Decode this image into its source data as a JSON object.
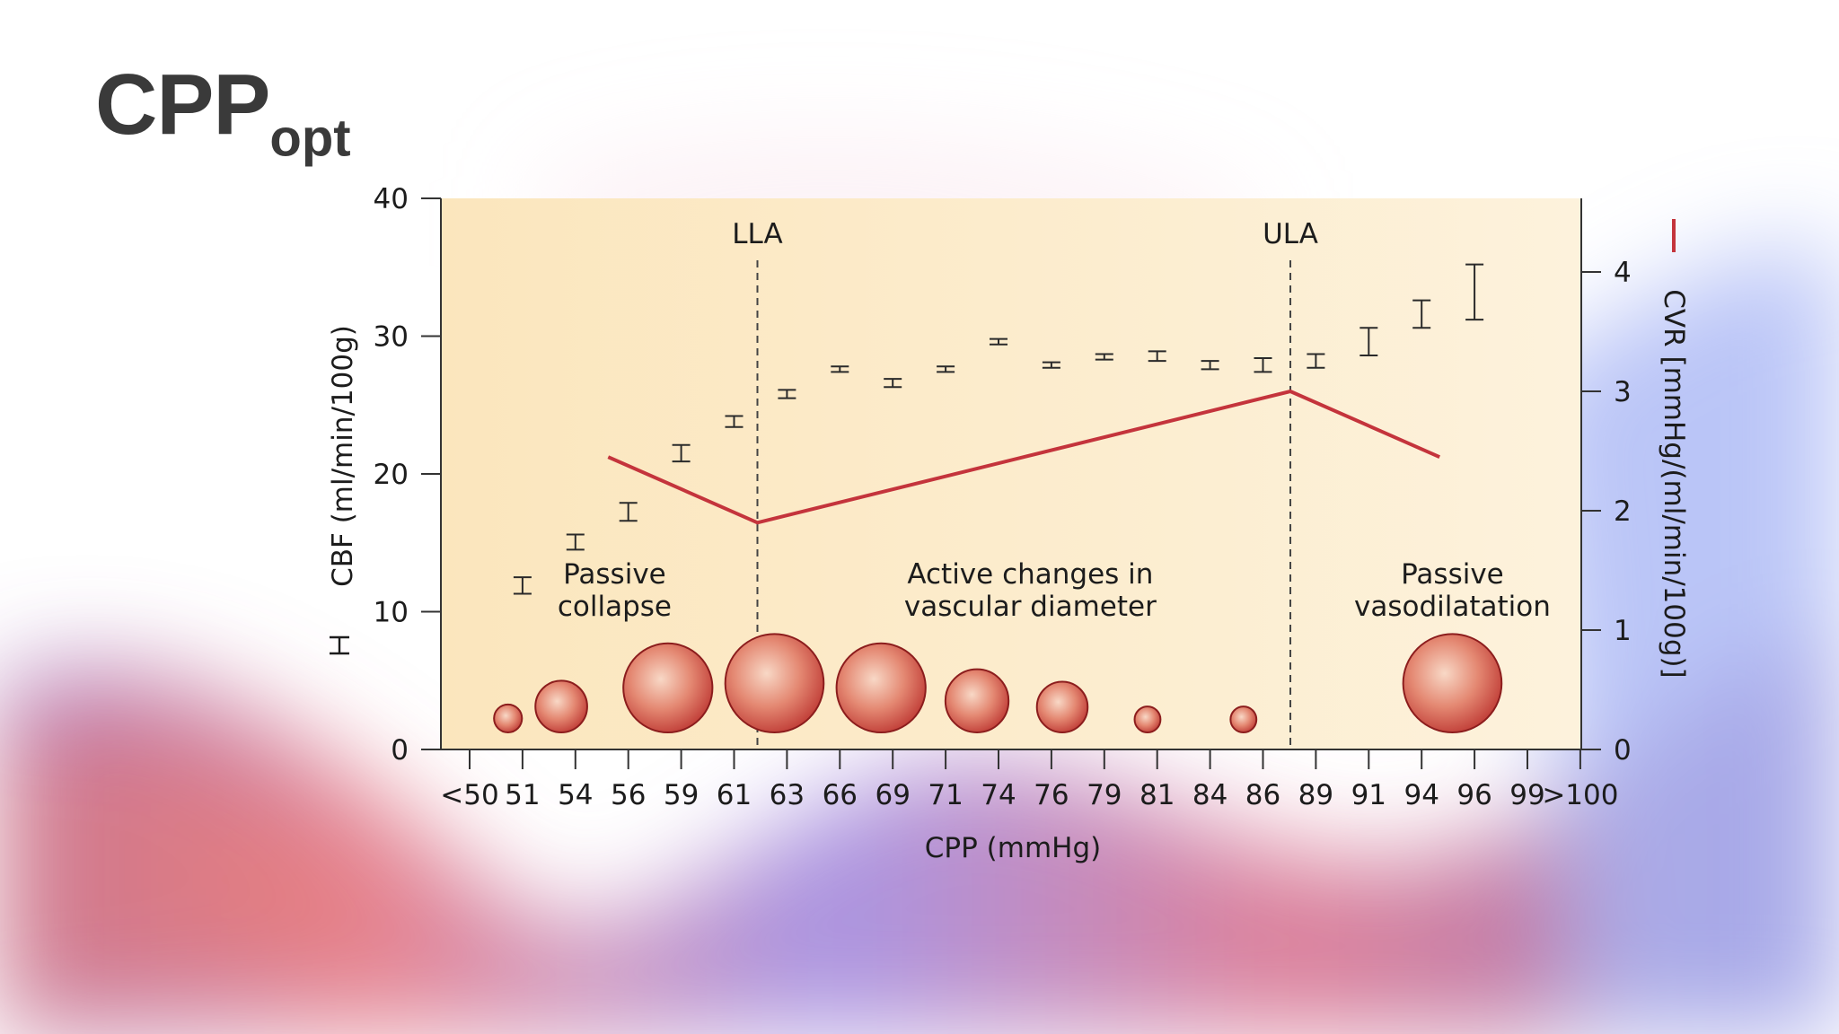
{
  "slide": {
    "title_main": "CPP",
    "title_sub": "opt"
  },
  "colors": {
    "plot_bg_left": "#fbe6bd",
    "plot_bg_right": "#fdf2dc",
    "cvr_line": "#c4343c",
    "vessel_edge": "#8c1d1d",
    "vessel_center": "#f8d8c6",
    "vessel_mid": "#e48872",
    "axis": "#333333"
  },
  "chart_data": {
    "type": "scatter",
    "xlabel": "CPP (mmHg)",
    "ylabel": "CBF (ml/min/100g)",
    "ylabel2": "CVR [mmHg/(ml/min/100g)]",
    "ylim": [
      0,
      40
    ],
    "y2lim": [
      0,
      4.5
    ],
    "yticks": [
      0,
      10,
      20,
      30,
      40
    ],
    "y2ticks": [
      0,
      1,
      2,
      3,
      4
    ],
    "categories": [
      "<50",
      "51",
      "54",
      "56",
      "59",
      "61",
      "63",
      "66",
      "69",
      "71",
      "74",
      "76",
      "79",
      "81",
      "84",
      "86",
      "89",
      "91",
      "94",
      "96",
      "99",
      ">100"
    ],
    "cbf": [
      {
        "x": "51",
        "mean": 11.8,
        "low": 11.3,
        "high": 12.5
      },
      {
        "x": "54",
        "mean": 15.0,
        "low": 14.5,
        "high": 15.6
      },
      {
        "x": "56",
        "mean": 17.2,
        "low": 16.6,
        "high": 17.9
      },
      {
        "x": "59",
        "mean": 21.5,
        "low": 20.9,
        "high": 22.1
      },
      {
        "x": "61",
        "mean": 23.8,
        "low": 23.4,
        "high": 24.2
      },
      {
        "x": "63",
        "mean": 25.8,
        "low": 25.5,
        "high": 26.1
      },
      {
        "x": "66",
        "mean": 27.6,
        "low": 27.4,
        "high": 27.8
      },
      {
        "x": "69",
        "mean": 26.6,
        "low": 26.3,
        "high": 26.9
      },
      {
        "x": "71",
        "mean": 27.6,
        "low": 27.4,
        "high": 27.8
      },
      {
        "x": "74",
        "mean": 29.6,
        "low": 29.4,
        "high": 29.8
      },
      {
        "x": "76",
        "mean": 27.9,
        "low": 27.7,
        "high": 28.1
      },
      {
        "x": "79",
        "mean": 28.5,
        "low": 28.3,
        "high": 28.7
      },
      {
        "x": "81",
        "mean": 28.5,
        "low": 28.2,
        "high": 28.9
      },
      {
        "x": "84",
        "mean": 27.9,
        "low": 27.6,
        "high": 28.2
      },
      {
        "x": "86",
        "mean": 27.9,
        "low": 27.4,
        "high": 28.4
      },
      {
        "x": "89",
        "mean": 28.2,
        "low": 27.7,
        "high": 28.7
      },
      {
        "x": "91",
        "mean": 29.6,
        "low": 28.6,
        "high": 30.6
      },
      {
        "x": "94",
        "mean": 31.6,
        "low": 30.6,
        "high": 32.6
      },
      {
        "x": "96",
        "mean": 33.2,
        "low": 31.2,
        "high": 35.2
      }
    ],
    "cvr": [
      {
        "x": 55.0,
        "y": 2.45
      },
      {
        "x": 62.0,
        "y": 1.9
      },
      {
        "x": 87.0,
        "y": 3.0
      },
      {
        "x": 94.0,
        "y": 2.45
      }
    ],
    "x_value_range": [
      48.5,
      100.6
    ],
    "markers": [
      {
        "label": "LLA",
        "x": 62.0
      },
      {
        "label": "ULA",
        "x": 87.0
      }
    ],
    "regions": [
      {
        "line1": "Passive",
        "line2": "collapse",
        "x": 55.3
      },
      {
        "line1": "Active changes in",
        "line2": "vascular diameter",
        "x": 74.8
      },
      {
        "line1": "Passive",
        "line2": "vasodilatation",
        "x": 94.6
      }
    ],
    "vessel_radius_units": [
      0.54,
      1.0,
      1.72,
      1.9,
      1.72,
      1.22,
      0.98,
      0.5,
      0.5,
      1.9
    ],
    "vessel_x": [
      50.3,
      52.8,
      57.8,
      62.8,
      67.8,
      72.3,
      76.3,
      80.3,
      84.8,
      94.6
    ]
  }
}
